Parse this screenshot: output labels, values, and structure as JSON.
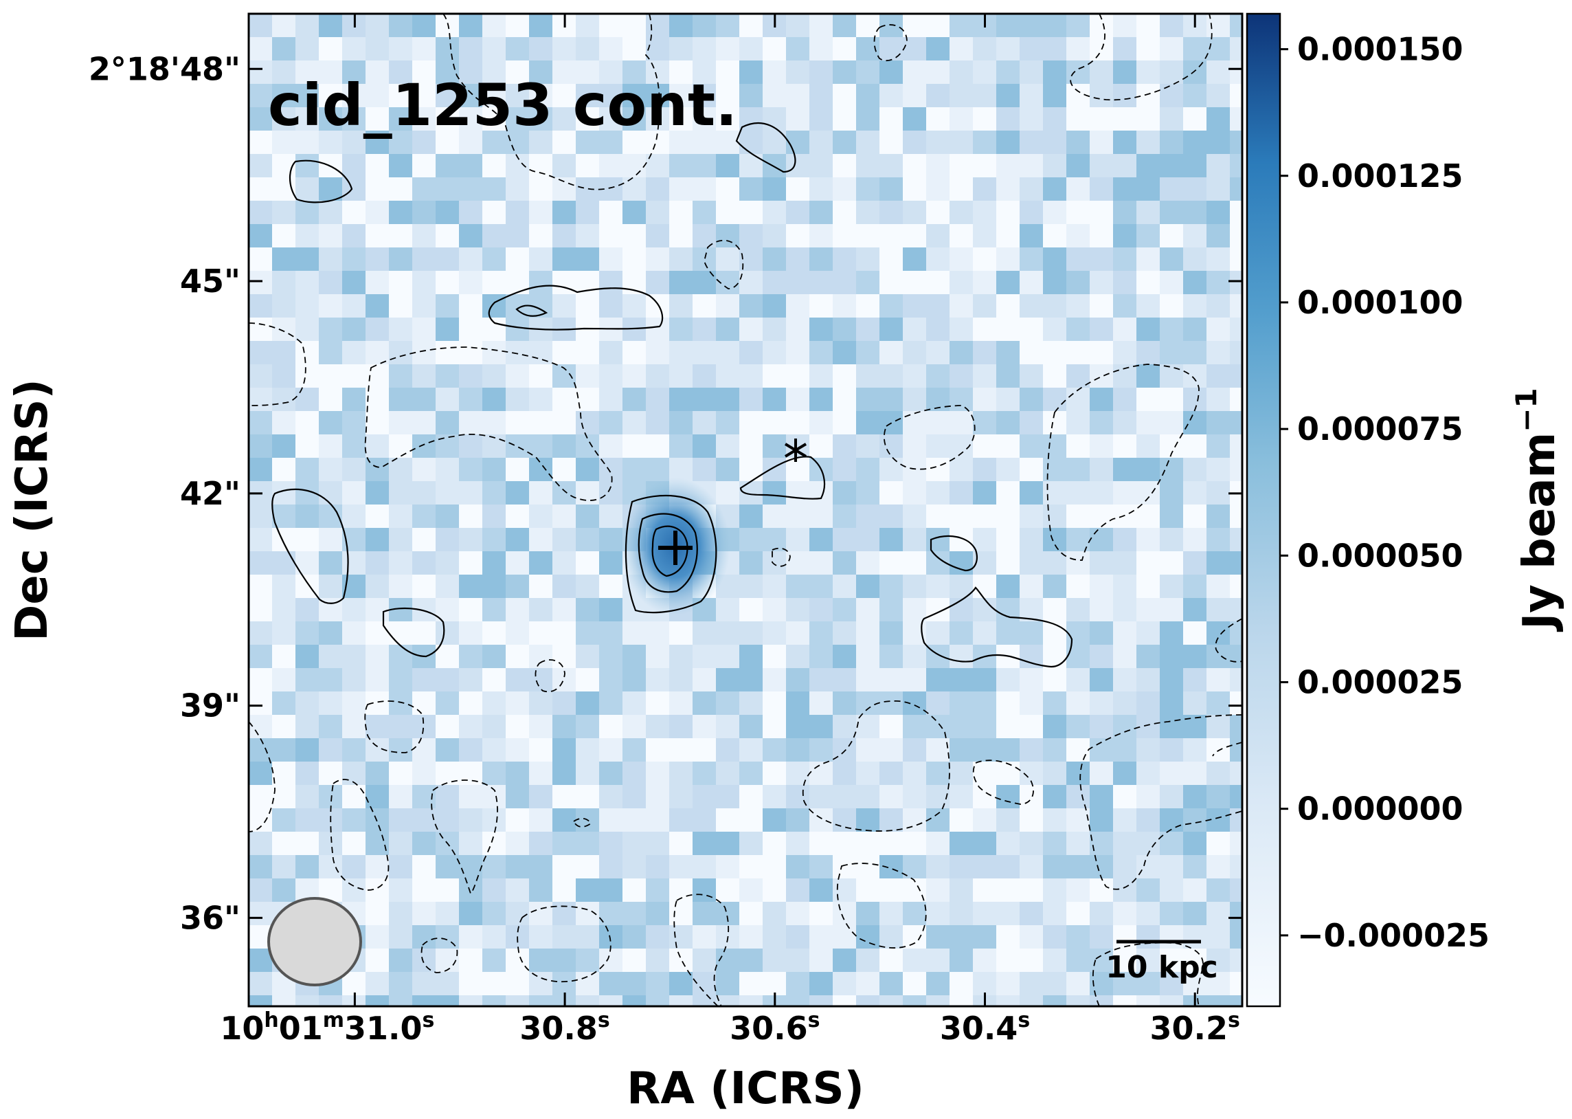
{
  "chart_data": {
    "type": "heatmap",
    "title": "cid_1253 cont.",
    "xlabel": "RA (ICRS)",
    "ylabel": "Dec (ICRS)",
    "colorbar_label": "Jy beam",
    "colorbar_label_sup": "−1",
    "x_ticks": [
      {
        "h": "10",
        "m": "01",
        "s": "31.0",
        "value_s": 31.0
      },
      {
        "s": "30.8",
        "value_s": 30.8
      },
      {
        "s": "30.6",
        "value_s": 30.6
      },
      {
        "s": "30.4",
        "value_s": 30.4
      },
      {
        "s": "30.2",
        "value_s": 30.2
      }
    ],
    "x_range_s": [
      31.101,
      30.155
    ],
    "y_ticks": [
      {
        "label": "2°18'48\"",
        "value_arcsec": 48
      },
      {
        "label": "45\"",
        "value_arcsec": 45
      },
      {
        "label": "42\"",
        "value_arcsec": 42
      },
      {
        "label": "39\"",
        "value_arcsec": 39
      },
      {
        "label": "36\"",
        "value_arcsec": 36
      }
    ],
    "y_range_arcsec": [
      34.75,
      48.78
    ],
    "colorbar_ticks": [
      "0.000150",
      "0.000125",
      "0.000100",
      "0.000075",
      "0.000050",
      "0.000025",
      "0.000000",
      "−0.000025"
    ],
    "colorbar_tick_values": [
      0.00015,
      0.000125,
      0.0001,
      7.5e-05,
      5e-05,
      2.5e-05,
      0.0,
      -2.5e-05
    ],
    "colorbar_range": [
      -3.9e-05,
      0.000157
    ],
    "colormap": "Blues",
    "colors": {
      "low": "#f7fbff",
      "high": "#0d3478",
      "contour": "#000000",
      "beam_fill": "#d9d9d9",
      "beam_edge": "#555555"
    },
    "contours": "solid contours at positive flux levels; dashed contours at negative flux levels",
    "markers": [
      {
        "symbol": "+",
        "ra_s": 30.685,
        "dec_arcsec": 41.25
      },
      {
        "symbol": "*",
        "ra_s": 30.566,
        "dec_arcsec": 42.6
      }
    ],
    "scale_bar_label": "10 kpc"
  }
}
